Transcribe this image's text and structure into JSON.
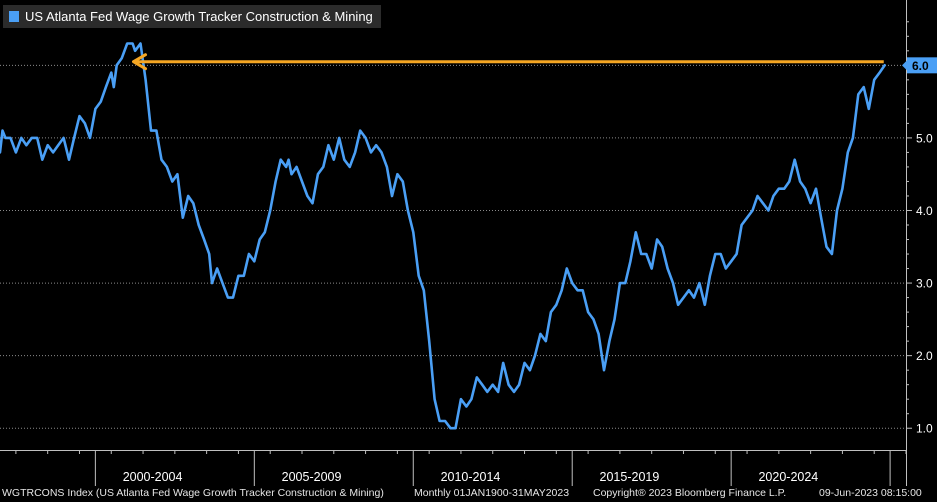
{
  "chart_data": {
    "type": "line",
    "legend": "US Atlanta Fed Wage Growth Tracker Construction & Mining",
    "series": [
      {
        "color": "#4a9ff5",
        "points": [
          [
            1997.5,
            4.8
          ],
          [
            1997.58,
            5.1
          ],
          [
            1997.67,
            5.0
          ],
          [
            1997.83,
            5.0
          ],
          [
            1998.0,
            4.8
          ],
          [
            1998.17,
            5.0
          ],
          [
            1998.33,
            4.9
          ],
          [
            1998.5,
            5.0
          ],
          [
            1998.67,
            5.0
          ],
          [
            1998.83,
            4.7
          ],
          [
            1999.0,
            4.9
          ],
          [
            1999.17,
            4.8
          ],
          [
            1999.33,
            4.9
          ],
          [
            1999.5,
            5.0
          ],
          [
            1999.67,
            4.7
          ],
          [
            1999.83,
            5.0
          ],
          [
            2000.0,
            5.3
          ],
          [
            2000.17,
            5.2
          ],
          [
            2000.33,
            5.0
          ],
          [
            2000.5,
            5.4
          ],
          [
            2000.67,
            5.5
          ],
          [
            2000.83,
            5.7
          ],
          [
            2001.0,
            5.9
          ],
          [
            2001.08,
            5.7
          ],
          [
            2001.17,
            6.0
          ],
          [
            2001.33,
            6.1
          ],
          [
            2001.5,
            6.3
          ],
          [
            2001.67,
            6.3
          ],
          [
            2001.75,
            6.2
          ],
          [
            2001.92,
            6.3
          ],
          [
            2002.08,
            5.8
          ],
          [
            2002.25,
            5.1
          ],
          [
            2002.42,
            5.1
          ],
          [
            2002.5,
            4.9
          ],
          [
            2002.58,
            4.7
          ],
          [
            2002.75,
            4.6
          ],
          [
            2002.92,
            4.4
          ],
          [
            2003.08,
            4.5
          ],
          [
            2003.25,
            3.9
          ],
          [
            2003.42,
            4.2
          ],
          [
            2003.58,
            4.1
          ],
          [
            2003.75,
            3.8
          ],
          [
            2003.92,
            3.6
          ],
          [
            2004.08,
            3.4
          ],
          [
            2004.17,
            3.0
          ],
          [
            2004.33,
            3.2
          ],
          [
            2004.5,
            3.0
          ],
          [
            2004.67,
            2.8
          ],
          [
            2004.83,
            2.8
          ],
          [
            2005.0,
            3.1
          ],
          [
            2005.17,
            3.1
          ],
          [
            2005.33,
            3.4
          ],
          [
            2005.5,
            3.3
          ],
          [
            2005.67,
            3.6
          ],
          [
            2005.83,
            3.7
          ],
          [
            2006.0,
            4.0
          ],
          [
            2006.17,
            4.4
          ],
          [
            2006.33,
            4.7
          ],
          [
            2006.5,
            4.6
          ],
          [
            2006.58,
            4.7
          ],
          [
            2006.67,
            4.5
          ],
          [
            2006.83,
            4.6
          ],
          [
            2007.0,
            4.4
          ],
          [
            2007.17,
            4.2
          ],
          [
            2007.33,
            4.1
          ],
          [
            2007.5,
            4.5
          ],
          [
            2007.67,
            4.6
          ],
          [
            2007.83,
            4.9
          ],
          [
            2008.0,
            4.7
          ],
          [
            2008.17,
            5.0
          ],
          [
            2008.33,
            4.7
          ],
          [
            2008.5,
            4.6
          ],
          [
            2008.67,
            4.8
          ],
          [
            2008.83,
            5.1
          ],
          [
            2009.0,
            5.0
          ],
          [
            2009.17,
            4.8
          ],
          [
            2009.33,
            4.9
          ],
          [
            2009.5,
            4.8
          ],
          [
            2009.67,
            4.6
          ],
          [
            2009.83,
            4.2
          ],
          [
            2010.0,
            4.5
          ],
          [
            2010.17,
            4.4
          ],
          [
            2010.33,
            4.0
          ],
          [
            2010.5,
            3.7
          ],
          [
            2010.67,
            3.1
          ],
          [
            2010.83,
            2.9
          ],
          [
            2011.0,
            2.2
          ],
          [
            2011.17,
            1.4
          ],
          [
            2011.33,
            1.1
          ],
          [
            2011.5,
            1.1
          ],
          [
            2011.67,
            1.0
          ],
          [
            2011.83,
            1.0
          ],
          [
            2012.0,
            1.4
          ],
          [
            2012.17,
            1.3
          ],
          [
            2012.33,
            1.4
          ],
          [
            2012.5,
            1.7
          ],
          [
            2012.67,
            1.6
          ],
          [
            2012.83,
            1.5
          ],
          [
            2013.0,
            1.6
          ],
          [
            2013.17,
            1.5
          ],
          [
            2013.33,
            1.9
          ],
          [
            2013.5,
            1.6
          ],
          [
            2013.67,
            1.5
          ],
          [
            2013.83,
            1.6
          ],
          [
            2014.0,
            1.9
          ],
          [
            2014.17,
            1.8
          ],
          [
            2014.33,
            2.0
          ],
          [
            2014.5,
            2.3
          ],
          [
            2014.67,
            2.2
          ],
          [
            2014.83,
            2.6
          ],
          [
            2015.0,
            2.7
          ],
          [
            2015.17,
            2.9
          ],
          [
            2015.33,
            3.2
          ],
          [
            2015.5,
            3.0
          ],
          [
            2015.67,
            2.9
          ],
          [
            2015.83,
            2.9
          ],
          [
            2016.0,
            2.6
          ],
          [
            2016.17,
            2.5
          ],
          [
            2016.33,
            2.3
          ],
          [
            2016.5,
            1.8
          ],
          [
            2016.67,
            2.2
          ],
          [
            2016.83,
            2.5
          ],
          [
            2017.0,
            3.0
          ],
          [
            2017.17,
            3.0
          ],
          [
            2017.33,
            3.3
          ],
          [
            2017.5,
            3.7
          ],
          [
            2017.67,
            3.4
          ],
          [
            2017.83,
            3.4
          ],
          [
            2018.0,
            3.2
          ],
          [
            2018.17,
            3.6
          ],
          [
            2018.33,
            3.5
          ],
          [
            2018.5,
            3.2
          ],
          [
            2018.67,
            3.0
          ],
          [
            2018.83,
            2.7
          ],
          [
            2019.0,
            2.8
          ],
          [
            2019.17,
            2.9
          ],
          [
            2019.33,
            2.8
          ],
          [
            2019.5,
            3.0
          ],
          [
            2019.67,
            2.7
          ],
          [
            2019.83,
            3.1
          ],
          [
            2020.0,
            3.4
          ],
          [
            2020.17,
            3.4
          ],
          [
            2020.33,
            3.2
          ],
          [
            2020.5,
            3.3
          ],
          [
            2020.67,
            3.4
          ],
          [
            2020.83,
            3.8
          ],
          [
            2021.0,
            3.9
          ],
          [
            2021.17,
            4.0
          ],
          [
            2021.33,
            4.2
          ],
          [
            2021.5,
            4.1
          ],
          [
            2021.67,
            4.0
          ],
          [
            2021.83,
            4.2
          ],
          [
            2022.0,
            4.3
          ],
          [
            2022.17,
            4.3
          ],
          [
            2022.33,
            4.4
          ],
          [
            2022.5,
            4.7
          ],
          [
            2022.67,
            4.4
          ],
          [
            2022.83,
            4.3
          ],
          [
            2023.0,
            4.1
          ],
          [
            2023.17,
            4.3
          ],
          [
            2023.33,
            3.9
          ],
          [
            2023.5,
            3.5
          ],
          [
            2023.67,
            3.4
          ],
          [
            2023.83,
            4.0
          ],
          [
            2024.0,
            4.3
          ],
          [
            2024.17,
            4.8
          ],
          [
            2024.33,
            5.0
          ],
          [
            2024.5,
            5.6
          ],
          [
            2024.67,
            5.7
          ],
          [
            2024.83,
            5.4
          ],
          [
            2025.0,
            5.8
          ],
          [
            2025.17,
            5.9
          ],
          [
            2025.33,
            6.0
          ]
        ]
      }
    ],
    "y_range": [
      0.7,
      6.9
    ],
    "y_ticks": [
      "1.0",
      "2.0",
      "3.0",
      "4.0",
      "5.0"
    ],
    "last_value_label": "6.0",
    "last_value_color": "#4a9ff5",
    "x_range": [
      1997.5,
      2026.0
    ],
    "x_period_labels": [
      {
        "label": "2000-2004",
        "center": 2002.3
      },
      {
        "label": "2005-2009",
        "center": 2007.3
      },
      {
        "label": "2010-2014",
        "center": 2012.3
      },
      {
        "label": "2015-2019",
        "center": 2017.3
      },
      {
        "label": "2020-2024",
        "center": 2022.3
      }
    ],
    "x_separators": [
      2000.5,
      2005.5,
      2010.5,
      2015.5,
      2020.5,
      2025.5
    ],
    "arrow": {
      "from": [
        2025.3,
        6.05
      ],
      "to": [
        2001.7,
        6.05
      ],
      "color": "#f5a623"
    },
    "grid": true
  },
  "footer": {
    "ticker": "WGTRCONS Index (US Atlanta Fed Wage Growth Tracker Construction & Mining)",
    "range": "Monthly 01JAN1900-31MAY2023",
    "copyright": "Copyright® 2023 Bloomberg Finance L.P.",
    "timestamp": "09-Jun-2023 08:15:00"
  }
}
